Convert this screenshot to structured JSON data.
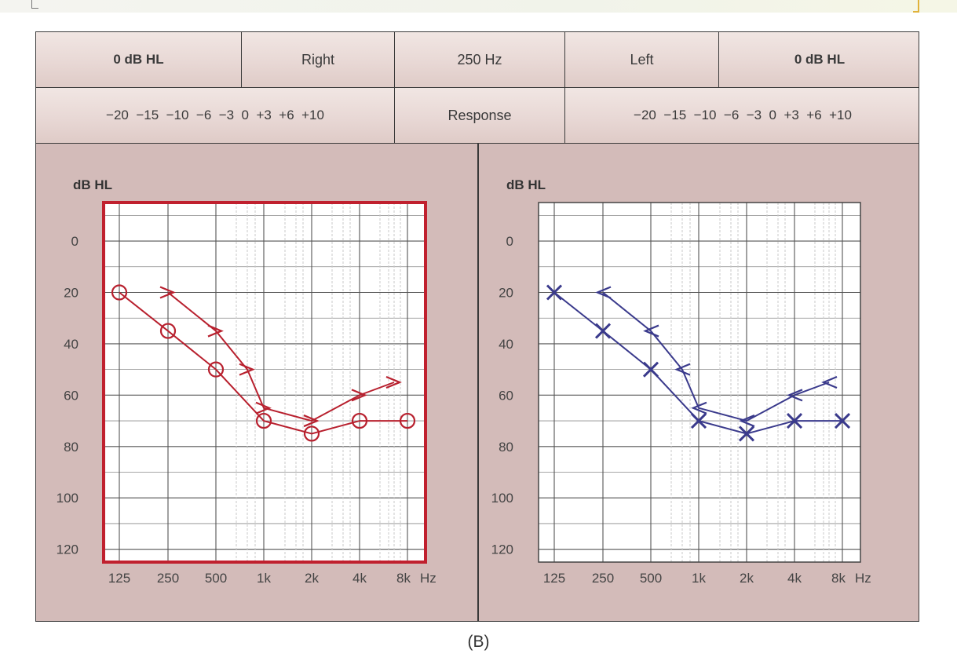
{
  "header": {
    "row1": [
      "0 dB HL",
      "Right",
      "250 Hz",
      "Left",
      "0 dB HL"
    ],
    "row2": {
      "left_scale": "−20  −15  −10  −6  −3  0  +3  +6  +10",
      "response": "Response",
      "right_scale": "−20  −15  −10  −6  −3  0  +3  +6  +10"
    }
  },
  "caption": "(B)",
  "chart_data": [
    {
      "type": "line",
      "panel": "right-ear",
      "color": "#b8202e",
      "ylabel": "dB HL",
      "xlabel": "Hz",
      "y_reversed": true,
      "ylim": [
        -15,
        125
      ],
      "yticks": [
        0,
        20,
        40,
        60,
        80,
        100,
        120
      ],
      "x_categories": [
        "125",
        "250",
        "500",
        "1k",
        "2k",
        "4k",
        "8k"
      ],
      "series": [
        {
          "marker": "O",
          "x": [
            "125",
            "250",
            "500",
            "1k",
            "2k",
            "4k",
            "8k"
          ],
          "y": [
            20,
            35,
            50,
            70,
            75,
            70,
            70
          ]
        },
        {
          "marker": ">",
          "x": [
            "250",
            "500",
            "750",
            "1k",
            "2k",
            "4k",
            "6k"
          ],
          "y": [
            20,
            35,
            50,
            65,
            70,
            60,
            55
          ]
        }
      ]
    },
    {
      "type": "line",
      "panel": "left-ear",
      "color": "#3a3a8c",
      "ylabel": "dB HL",
      "xlabel": "Hz",
      "y_reversed": true,
      "ylim": [
        -15,
        125
      ],
      "yticks": [
        0,
        20,
        40,
        60,
        80,
        100,
        120
      ],
      "x_categories": [
        "125",
        "250",
        "500",
        "1k",
        "2k",
        "4k",
        "8k"
      ],
      "series": [
        {
          "marker": "X",
          "x": [
            "125",
            "250",
            "500",
            "1k",
            "2k",
            "4k",
            "8k"
          ],
          "y": [
            20,
            35,
            50,
            70,
            75,
            70,
            70
          ]
        },
        {
          "marker": "<",
          "x": [
            "250",
            "500",
            "750",
            "1k",
            "2k",
            "4k",
            "6k"
          ],
          "y": [
            20,
            35,
            50,
            65,
            70,
            60,
            55
          ]
        }
      ]
    }
  ]
}
